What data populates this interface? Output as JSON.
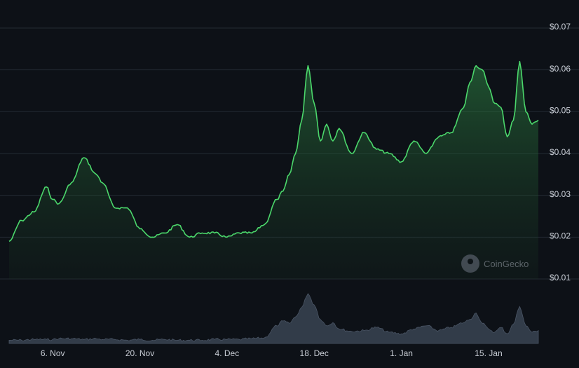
{
  "chart_data": {
    "type": "area",
    "title": "",
    "xlabel": "",
    "ylabel": "",
    "x_ticks": [
      "6. Nov",
      "20. Nov",
      "4. Dec",
      "18. Dec",
      "1. Jan",
      "15. Jan"
    ],
    "y_ticks": [
      "$0.01",
      "$0.02",
      "$0.03",
      "$0.04",
      "$0.05",
      "$0.06",
      "$0.07"
    ],
    "ylim": [
      0.01,
      0.07
    ],
    "grid": true,
    "date_range": [
      "2023-10-30",
      "2024-01-23"
    ],
    "price_series": {
      "x": [
        "2023-10-30",
        "2023-11-01",
        "2023-11-03",
        "2023-11-05",
        "2023-11-06",
        "2023-11-07",
        "2023-11-09",
        "2023-11-11",
        "2023-11-13",
        "2023-11-14",
        "2023-11-16",
        "2023-11-18",
        "2023-11-20",
        "2023-11-22",
        "2023-11-24",
        "2023-11-26",
        "2023-11-28",
        "2023-11-30",
        "2023-12-02",
        "2023-12-04",
        "2023-12-06",
        "2023-12-08",
        "2023-12-10",
        "2023-12-12",
        "2023-12-13",
        "2023-12-14",
        "2023-12-15",
        "2023-12-16",
        "2023-12-17",
        "2023-12-18",
        "2023-12-19",
        "2023-12-20",
        "2023-12-21",
        "2023-12-22",
        "2023-12-24",
        "2023-12-26",
        "2023-12-28",
        "2023-12-30",
        "2024-01-01",
        "2024-01-03",
        "2024-01-05",
        "2024-01-07",
        "2024-01-09",
        "2024-01-11",
        "2024-01-12",
        "2024-01-13",
        "2024-01-14",
        "2024-01-15",
        "2024-01-16",
        "2024-01-17",
        "2024-01-18",
        "2024-01-19",
        "2024-01-20",
        "2024-01-21",
        "2024-01-22",
        "2024-01-23"
      ],
      "values": [
        0.019,
        0.024,
        0.026,
        0.032,
        0.029,
        0.028,
        0.033,
        0.039,
        0.035,
        0.033,
        0.027,
        0.027,
        0.022,
        0.02,
        0.021,
        0.023,
        0.02,
        0.021,
        0.021,
        0.02,
        0.021,
        0.021,
        0.023,
        0.029,
        0.031,
        0.035,
        0.04,
        0.048,
        0.061,
        0.052,
        0.043,
        0.047,
        0.043,
        0.046,
        0.04,
        0.045,
        0.041,
        0.04,
        0.038,
        0.043,
        0.04,
        0.044,
        0.045,
        0.051,
        0.057,
        0.061,
        0.06,
        0.056,
        0.052,
        0.051,
        0.044,
        0.048,
        0.062,
        0.05,
        0.047,
        0.048
      ],
      "color": "#4bd76b"
    },
    "volume_series": {
      "values": [
        0.04,
        0.04,
        0.05,
        0.05,
        0.05,
        0.06,
        0.06,
        0.05,
        0.06,
        0.05,
        0.05,
        0.04,
        0.05,
        0.04,
        0.05,
        0.04,
        0.04,
        0.04,
        0.05,
        0.05,
        0.05,
        0.06,
        0.07,
        0.22,
        0.28,
        0.25,
        0.33,
        0.45,
        0.62,
        0.48,
        0.3,
        0.22,
        0.26,
        0.18,
        0.15,
        0.16,
        0.2,
        0.14,
        0.12,
        0.18,
        0.22,
        0.16,
        0.2,
        0.26,
        0.3,
        0.38,
        0.25,
        0.18,
        0.14,
        0.2,
        0.12,
        0.24,
        0.46,
        0.22,
        0.14,
        0.16
      ],
      "color": "#3a4452"
    },
    "watermark": "CoinGecko"
  }
}
